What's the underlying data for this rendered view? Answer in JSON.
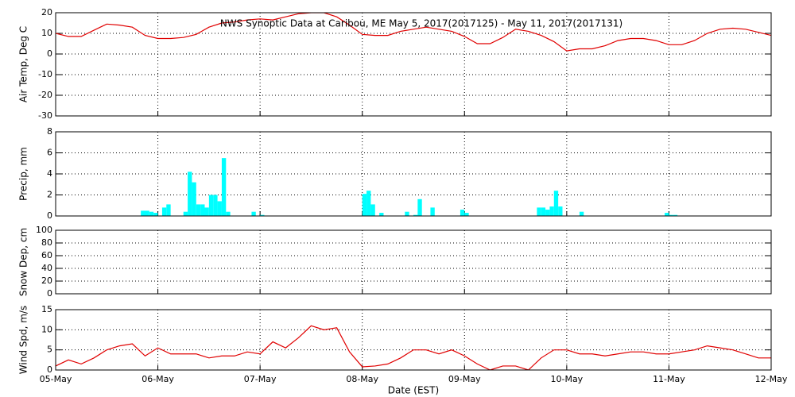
{
  "chart_data": [
    {
      "type": "line",
      "title": "NWS Synoptic Data at Caribou, ME   May  5, 2017(2017125) - May 11, 2017(2017131)",
      "ylabel": "Air Temp, Deg C",
      "color": "#e00000",
      "grid": true,
      "x": [
        0,
        3,
        6,
        9,
        12,
        15,
        18,
        21,
        24,
        27,
        30,
        33,
        36,
        39,
        42,
        45,
        48,
        51,
        54,
        57,
        60,
        63,
        66,
        69,
        72,
        75,
        78,
        81,
        84,
        87,
        90,
        93,
        96,
        99,
        102,
        105,
        108,
        111,
        114,
        117,
        120,
        123,
        126,
        129,
        132,
        135,
        138,
        141,
        144,
        147,
        150,
        153,
        156,
        159,
        162,
        165,
        168
      ],
      "values": [
        10,
        8.5,
        8.5,
        11.5,
        14.5,
        14,
        13,
        9,
        7.5,
        7.5,
        8,
        9.5,
        13,
        15,
        15.5,
        16.5,
        17,
        16.5,
        18,
        19.5,
        20,
        20,
        18,
        14,
        9.5,
        9,
        9,
        11,
        12,
        13,
        12,
        11,
        8.5,
        5,
        5,
        8,
        12,
        11,
        9,
        6,
        1.5,
        2.5,
        2.5,
        4,
        6.5,
        7.5,
        7.5,
        6.5,
        4.5,
        4.5,
        6.5,
        10,
        12,
        12.5,
        12,
        10.5,
        9
      ],
      "xlim": [
        0,
        168
      ],
      "xticks": [
        0,
        24,
        48,
        72,
        96,
        120,
        144,
        168
      ],
      "ylim": [
        -30,
        20
      ],
      "yticks": [
        -30,
        -20,
        -10,
        0,
        10,
        20
      ]
    },
    {
      "type": "bar",
      "ylabel": "Precip, mm",
      "color": "#00ffff",
      "grid": true,
      "x": [
        20,
        21,
        22,
        23,
        25,
        26,
        30,
        31,
        32,
        33,
        34,
        35,
        36,
        37,
        38,
        39,
        40,
        46,
        48,
        72,
        73,
        74,
        76,
        82,
        84,
        85,
        88,
        95,
        96,
        113,
        114,
        115,
        116,
        117,
        118,
        123,
        143,
        144,
        145
      ],
      "values": [
        0.5,
        0.5,
        0.4,
        0.3,
        0.8,
        1.1,
        0.4,
        4.2,
        3.2,
        1.1,
        1.1,
        0.8,
        2.0,
        2.0,
        1.4,
        5.5,
        0.4,
        0.4,
        0.1,
        2.1,
        2.4,
        1.1,
        0.3,
        0.4,
        0.1,
        1.6,
        0.8,
        0.6,
        0.3,
        0.8,
        0.8,
        0.6,
        0.9,
        2.4,
        0.9,
        0.4,
        0.3,
        0.1,
        0.1
      ],
      "xlim": [
        0,
        168
      ],
      "xticks": [
        0,
        24,
        48,
        72,
        96,
        120,
        144,
        168
      ],
      "ylim": [
        0,
        8
      ],
      "yticks": [
        0,
        2,
        4,
        6,
        8
      ]
    },
    {
      "type": "line",
      "ylabel": "Snow Dep, cm",
      "color": "#e00000",
      "grid": true,
      "xlim": [
        0,
        168
      ],
      "xticks": [
        0,
        24,
        48,
        72,
        96,
        120,
        144,
        168
      ],
      "ylim": [
        0,
        100
      ],
      "yticks": [
        0,
        20,
        40,
        60,
        80,
        100
      ]
    },
    {
      "type": "line",
      "ylabel": "Wind Spd, m/s",
      "xlabel": "Date (EST)",
      "color": "#e00000",
      "grid": true,
      "x": [
        0,
        3,
        6,
        9,
        12,
        15,
        18,
        21,
        24,
        27,
        30,
        33,
        36,
        39,
        42,
        45,
        48,
        51,
        54,
        57,
        60,
        63,
        66,
        69,
        72,
        75,
        78,
        81,
        84,
        87,
        90,
        93,
        96,
        99,
        102,
        105,
        108,
        111,
        114,
        117,
        120,
        123,
        126,
        129,
        132,
        135,
        138,
        141,
        144,
        147,
        150,
        153,
        156,
        159,
        162,
        165,
        168
      ],
      "values": [
        1,
        2.5,
        1.5,
        3,
        5,
        6,
        6.5,
        3.5,
        5.5,
        4,
        4,
        4,
        3,
        3.5,
        3.5,
        4.5,
        4,
        7,
        5.5,
        8,
        11,
        10,
        10.5,
        4.5,
        0.8,
        1,
        1.5,
        3,
        5,
        5,
        4,
        5,
        3.5,
        1.5,
        0,
        1,
        1,
        0,
        3,
        5,
        5,
        4,
        4,
        3.5,
        4,
        4.5,
        4.5,
        4,
        4,
        4.5,
        5,
        6,
        5.5,
        5,
        4,
        3,
        3
      ],
      "xlim": [
        0,
        168
      ],
      "xticks": [
        {
          "value": 0,
          "label": "05-May"
        },
        {
          "value": 24,
          "label": "06-May"
        },
        {
          "value": 48,
          "label": "07-May"
        },
        {
          "value": 72,
          "label": "08-May"
        },
        {
          "value": 96,
          "label": "09-May"
        },
        {
          "value": 120,
          "label": "10-May"
        },
        {
          "value": 144,
          "label": "11-May"
        },
        {
          "value": 168,
          "label": "12-May"
        }
      ],
      "ylim": [
        0,
        15
      ],
      "yticks": [
        0,
        5,
        10,
        15
      ]
    }
  ]
}
